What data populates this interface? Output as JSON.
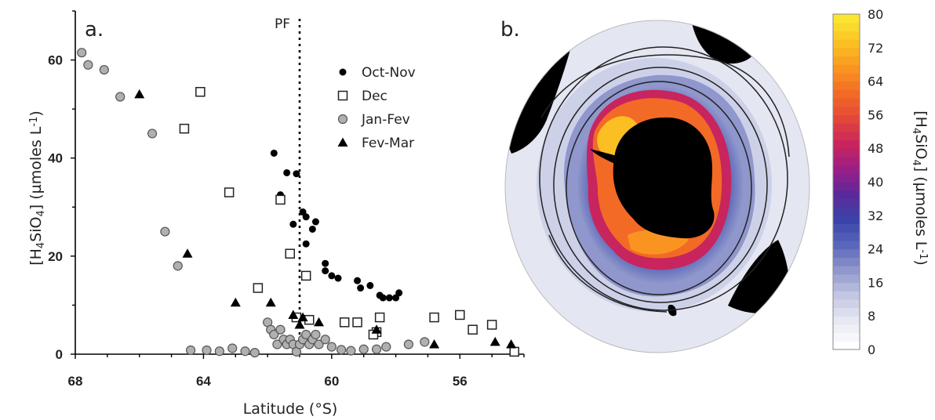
{
  "chart_data": [
    {
      "panel": "a.",
      "type": "scatter",
      "xlabel": "Latitude (°S)",
      "ylabel": "[H4SiO4] (µmoles L-1)",
      "xlim": [
        68,
        54
      ],
      "ylim": [
        0,
        70
      ],
      "x_ticks": [
        68,
        64,
        60,
        56
      ],
      "y_ticks": [
        0,
        20,
        40,
        60
      ],
      "legend_position": "top-right",
      "annotations": [
        {
          "text": "PF",
          "x": 61.0
        }
      ],
      "series": [
        {
          "name": "Oct-Nov",
          "marker": "filled-circle",
          "color": "#000000",
          "points": [
            [
              61.8,
              41
            ],
            [
              61.6,
              32.5
            ],
            [
              61.4,
              37
            ],
            [
              61.1,
              36.8
            ],
            [
              61.2,
              26.5
            ],
            [
              60.9,
              29
            ],
            [
              60.8,
              28
            ],
            [
              60.8,
              22.5
            ],
            [
              60.6,
              25.5
            ],
            [
              60.5,
              27
            ],
            [
              60.2,
              18.5
            ],
            [
              60.2,
              17
            ],
            [
              60.0,
              16
            ],
            [
              59.8,
              15.5
            ],
            [
              59.2,
              15
            ],
            [
              59.1,
              13.5
            ],
            [
              58.8,
              14
            ],
            [
              58.5,
              12
            ],
            [
              58.4,
              11.5
            ],
            [
              58.2,
              11.5
            ],
            [
              58.0,
              11.5
            ],
            [
              57.9,
              12.5
            ]
          ]
        },
        {
          "name": "Dec",
          "marker": "open-square",
          "color": "#000000",
          "points": [
            [
              64.1,
              53.5
            ],
            [
              64.6,
              46
            ],
            [
              63.2,
              33
            ],
            [
              61.6,
              31.5
            ],
            [
              61.3,
              20.5
            ],
            [
              60.8,
              16
            ],
            [
              62.3,
              13.5
            ],
            [
              61.1,
              7.5
            ],
            [
              60.7,
              7
            ],
            [
              59.6,
              6.5
            ],
            [
              59.2,
              6.5
            ],
            [
              58.5,
              7.5
            ],
            [
              58.6,
              4.5
            ],
            [
              58.7,
              4
            ],
            [
              56.8,
              7.5
            ],
            [
              56.0,
              8
            ],
            [
              55.6,
              5
            ],
            [
              55.0,
              6
            ],
            [
              54.3,
              0.5
            ]
          ]
        },
        {
          "name": "Jan-Fev",
          "marker": "gray-circle",
          "color": "#b0b0b0",
          "points": [
            [
              67.8,
              61.5
            ],
            [
              67.6,
              59
            ],
            [
              67.1,
              58
            ],
            [
              66.6,
              52.5
            ],
            [
              65.6,
              45
            ],
            [
              65.2,
              25
            ],
            [
              64.8,
              18
            ],
            [
              64.4,
              0.8
            ],
            [
              63.9,
              0.8
            ],
            [
              63.5,
              0.6
            ],
            [
              63.1,
              1.2
            ],
            [
              62.7,
              0.6
            ],
            [
              62.4,
              0.3
            ],
            [
              62.0,
              6.5
            ],
            [
              61.9,
              5
            ],
            [
              61.8,
              4
            ],
            [
              61.7,
              2
            ],
            [
              61.6,
              5
            ],
            [
              61.5,
              3
            ],
            [
              61.4,
              2
            ],
            [
              61.3,
              3
            ],
            [
              61.2,
              2
            ],
            [
              61.1,
              0.5
            ],
            [
              61.0,
              2
            ],
            [
              60.9,
              3
            ],
            [
              60.8,
              4
            ],
            [
              60.7,
              2
            ],
            [
              60.6,
              3
            ],
            [
              60.5,
              4
            ],
            [
              60.4,
              2
            ],
            [
              60.2,
              3
            ],
            [
              60.0,
              1.5
            ],
            [
              59.7,
              0.9
            ],
            [
              59.4,
              0.7
            ],
            [
              59.0,
              1
            ],
            [
              58.6,
              1
            ],
            [
              58.3,
              1.5
            ],
            [
              57.6,
              2
            ],
            [
              57.1,
              2.5
            ]
          ]
        },
        {
          "name": "Fev-Mar",
          "marker": "filled-triangle",
          "color": "#000000",
          "points": [
            [
              66.0,
              53
            ],
            [
              64.5,
              20.5
            ],
            [
              63.0,
              10.5
            ],
            [
              61.9,
              10.5
            ],
            [
              61.2,
              8
            ],
            [
              61.0,
              6
            ],
            [
              60.9,
              7.5
            ],
            [
              60.4,
              6.5
            ],
            [
              58.6,
              5
            ],
            [
              56.8,
              2
            ],
            [
              54.9,
              2.5
            ],
            [
              54.4,
              2
            ]
          ]
        }
      ]
    },
    {
      "panel": "b.",
      "type": "heatmap",
      "projection": "south-polar-stereographic",
      "colorbar": {
        "label": "[H4SiO4] (µmoles L-1)",
        "min": 0,
        "max": 80,
        "ticks": [
          0,
          8,
          16,
          24,
          32,
          40,
          48,
          56,
          64,
          72,
          80
        ],
        "colors": [
          "#ffffff",
          "#e6e8f2",
          "#c2c6e2",
          "#8f97cc",
          "#5a66bb",
          "#3a44a8",
          "#5a2a9a",
          "#9a1e88",
          "#c8245e",
          "#e2473a",
          "#f26a26",
          "#f99420",
          "#fbbf24",
          "#fbe531"
        ]
      },
      "land_color": "#000000"
    }
  ]
}
